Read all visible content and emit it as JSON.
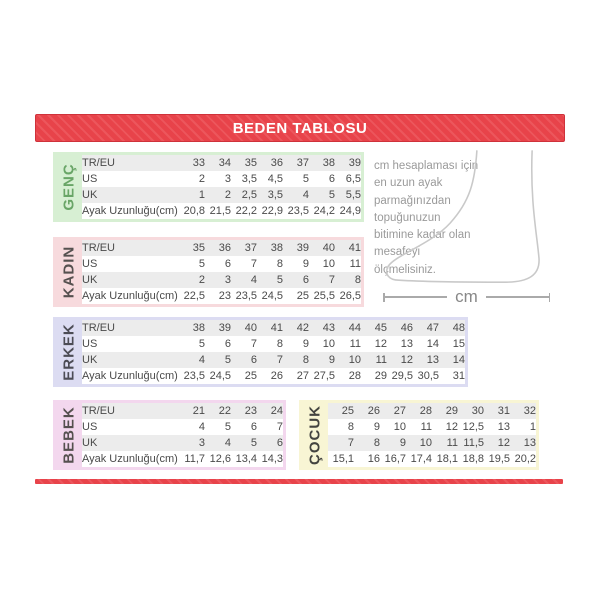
{
  "header": {
    "title": "BEDEN TABLOSU"
  },
  "colors": {
    "red": "#e8434a",
    "red_stripe": "#ec565c",
    "red_dark": "#cf323b",
    "text": "#4a4a4a",
    "note_text": "#9a9a9a"
  },
  "sections": [
    {
      "id": "genc",
      "label": "GENÇ",
      "bg": "#d7efd3",
      "label_color": "#69a567",
      "row_labels": [
        "TR/EU",
        "US",
        "UK",
        "Ayak Uzunluğu(cm)"
      ],
      "rows": [
        [
          "33",
          "34",
          "35",
          "36",
          "37",
          "38",
          "39"
        ],
        [
          "2",
          "3",
          "3,5",
          "4,5",
          "5",
          "6",
          "6,5"
        ],
        [
          "1",
          "2",
          "2,5",
          "3,5",
          "4",
          "5",
          "5,5"
        ],
        [
          "20,8",
          "21,5",
          "22,2",
          "22,9",
          "23,5",
          "24,2",
          "24,9"
        ]
      ]
    },
    {
      "id": "kadin",
      "label": "KADIN",
      "bg": "#f7dadd",
      "label_color": "#55504f",
      "row_labels": [
        "TR/EU",
        "US",
        "UK",
        "Ayak Uzunluğu(cm)"
      ],
      "rows": [
        [
          "35",
          "36",
          "37",
          "38",
          "39",
          "40",
          "41"
        ],
        [
          "5",
          "6",
          "7",
          "8",
          "9",
          "10",
          "11"
        ],
        [
          "2",
          "3",
          "4",
          "5",
          "6",
          "7",
          "8"
        ],
        [
          "22,5",
          "23",
          "23,5",
          "24,5",
          "25",
          "25,5",
          "26,5"
        ]
      ]
    },
    {
      "id": "erkek",
      "label": "ERKEK",
      "bg": "#dcdcf2",
      "label_color": "#4c4c55",
      "row_labels": [
        "TR/EU",
        "US",
        "UK",
        "Ayak Uzunluğu(cm)"
      ],
      "rows": [
        [
          "38",
          "39",
          "40",
          "41",
          "42",
          "43",
          "44",
          "45",
          "46",
          "47",
          "48"
        ],
        [
          "5",
          "6",
          "7",
          "8",
          "9",
          "10",
          "11",
          "12",
          "13",
          "14",
          "15"
        ],
        [
          "4",
          "5",
          "6",
          "7",
          "8",
          "9",
          "10",
          "11",
          "12",
          "13",
          "14"
        ],
        [
          "23,5",
          "24,5",
          "25",
          "26",
          "27",
          "27,5",
          "28",
          "29",
          "29,5",
          "30,5",
          "31"
        ]
      ]
    },
    {
      "id": "bebek",
      "label": "BEBEK",
      "bg": "#f3d7ee",
      "label_color": "#55504f",
      "row_labels": [
        "TR/EU",
        "US",
        "UK",
        "Ayak Uzunluğu(cm)"
      ],
      "rows": [
        [
          "21",
          "22",
          "23",
          "24"
        ],
        [
          "4",
          "5",
          "6",
          "7"
        ],
        [
          "3",
          "4",
          "5",
          "6"
        ],
        [
          "11,7",
          "12,6",
          "13,4",
          "14,3"
        ]
      ]
    },
    {
      "id": "cocuk",
      "label": "ÇOCUK",
      "bg": "#f8f5d4",
      "label_color": "#444440",
      "row_labels": null,
      "rows": [
        [
          "25",
          "26",
          "27",
          "28",
          "29",
          "30",
          "31",
          "32"
        ],
        [
          "8",
          "9",
          "10",
          "11",
          "12",
          "12,5",
          "13",
          "1"
        ],
        [
          "7",
          "8",
          "9",
          "10",
          "11",
          "11,5",
          "12",
          "13"
        ],
        [
          "15,1",
          "16",
          "16,7",
          "17,4",
          "18,1",
          "18,8",
          "19,5",
          "20,2"
        ]
      ]
    }
  ],
  "note": {
    "text": "cm hesaplaması için en uzun ayak parmağınızdan topuğunuzun bitimine kadar olan mesafeyi ölçmelisiniz."
  },
  "measure": {
    "unit": "cm"
  }
}
